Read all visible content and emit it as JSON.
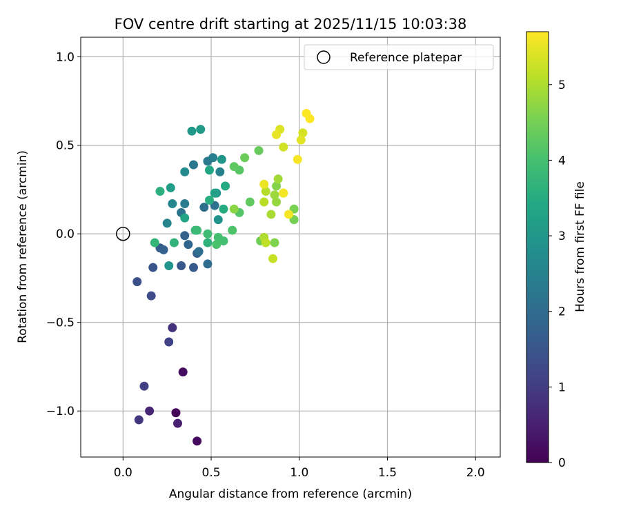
{
  "chart_data": {
    "type": "scatter",
    "title": "FOV centre drift starting at 2025/11/15 10:03:38",
    "xlabel": "Angular distance from reference (arcmin)",
    "ylabel": "Rotation from reference (arcmin)",
    "xlim": [
      -0.24,
      2.14
    ],
    "ylim": [
      -1.26,
      1.11
    ],
    "xticks": [
      0.0,
      0.5,
      1.0,
      1.5,
      2.0
    ],
    "xtick_labels": [
      "0.0",
      "0.5",
      "1.0",
      "1.5",
      "2.0"
    ],
    "yticks": [
      -1.0,
      -0.5,
      0.0,
      0.5,
      1.0
    ],
    "ytick_labels": [
      "−1.0",
      "−0.5",
      "0.0",
      "0.5",
      "1.0"
    ],
    "grid": true,
    "legend": {
      "position": "top-right",
      "label": "Reference platepar"
    },
    "reference_point": {
      "x": 0.0,
      "y": 0.0
    },
    "colorbar": {
      "label": "Hours from first FF file",
      "range": [
        0,
        5.7
      ],
      "ticks": [
        0,
        1,
        2,
        3,
        4,
        5
      ],
      "tick_labels": [
        "0",
        "1",
        "2",
        "3",
        "4",
        "5"
      ],
      "colormap": "viridis"
    },
    "points": [
      {
        "x": 0.3,
        "y": -1.01,
        "t": 0.05
      },
      {
        "x": 0.42,
        "y": -1.17,
        "t": 0.15
      },
      {
        "x": 0.34,
        "y": -0.78,
        "t": 0.2
      },
      {
        "x": 0.31,
        "y": -1.07,
        "t": 0.5
      },
      {
        "x": 0.15,
        "y": -1.0,
        "t": 0.6
      },
      {
        "x": 0.28,
        "y": -0.53,
        "t": 0.8
      },
      {
        "x": 0.09,
        "y": -1.05,
        "t": 0.9
      },
      {
        "x": 0.12,
        "y": -0.86,
        "t": 1.05
      },
      {
        "x": 0.26,
        "y": -0.61,
        "t": 1.1
      },
      {
        "x": 0.16,
        "y": -0.35,
        "t": 1.3
      },
      {
        "x": 0.08,
        "y": -0.27,
        "t": 1.4
      },
      {
        "x": 0.17,
        "y": -0.19,
        "t": 1.5
      },
      {
        "x": 0.33,
        "y": -0.18,
        "t": 1.55
      },
      {
        "x": 0.4,
        "y": -0.19,
        "t": 1.6
      },
      {
        "x": 0.21,
        "y": -0.08,
        "t": 1.65
      },
      {
        "x": 0.42,
        "y": -0.11,
        "t": 1.7
      },
      {
        "x": 0.23,
        "y": -0.09,
        "t": 1.75
      },
      {
        "x": 0.35,
        "y": -0.01,
        "t": 1.8
      },
      {
        "x": 0.37,
        "y": -0.06,
        "t": 1.85
      },
      {
        "x": 0.48,
        "y": -0.17,
        "t": 2.0
      },
      {
        "x": 0.43,
        "y": -0.1,
        "t": 2.05
      },
      {
        "x": 0.46,
        "y": 0.15,
        "t": 2.1
      },
      {
        "x": 0.52,
        "y": 0.16,
        "t": 2.15
      },
      {
        "x": 0.33,
        "y": 0.12,
        "t": 2.2
      },
      {
        "x": 0.4,
        "y": 0.39,
        "t": 2.25
      },
      {
        "x": 0.48,
        "y": 0.41,
        "t": 2.3
      },
      {
        "x": 0.35,
        "y": 0.17,
        "t": 2.4
      },
      {
        "x": 0.51,
        "y": 0.43,
        "t": 2.45
      },
      {
        "x": 0.55,
        "y": 0.35,
        "t": 2.5
      },
      {
        "x": 0.25,
        "y": 0.06,
        "t": 2.55
      },
      {
        "x": 0.28,
        "y": 0.17,
        "t": 2.6
      },
      {
        "x": 0.35,
        "y": 0.35,
        "t": 2.7
      },
      {
        "x": 0.53,
        "y": 0.23,
        "t": 2.8
      },
      {
        "x": 0.54,
        "y": 0.08,
        "t": 2.9
      },
      {
        "x": 0.26,
        "y": -0.18,
        "t": 2.95
      },
      {
        "x": 0.56,
        "y": 0.42,
        "t": 3.0
      },
      {
        "x": 0.39,
        "y": 0.58,
        "t": 3.05
      },
      {
        "x": 0.44,
        "y": 0.59,
        "t": 3.1
      },
      {
        "x": 0.27,
        "y": 0.26,
        "t": 3.15
      },
      {
        "x": 0.52,
        "y": 0.23,
        "t": 3.25
      },
      {
        "x": 0.35,
        "y": 0.09,
        "t": 3.35
      },
      {
        "x": 0.49,
        "y": 0.36,
        "t": 3.4
      },
      {
        "x": 0.58,
        "y": 0.27,
        "t": 3.45
      },
      {
        "x": 0.57,
        "y": 0.14,
        "t": 3.5
      },
      {
        "x": 0.49,
        "y": 0.19,
        "t": 3.55
      },
      {
        "x": 0.21,
        "y": 0.24,
        "t": 3.6
      },
      {
        "x": 0.48,
        "y": -0.05,
        "t": 3.65
      },
      {
        "x": 0.29,
        "y": -0.05,
        "t": 3.7
      },
      {
        "x": 0.18,
        "y": -0.05,
        "t": 3.75
      },
      {
        "x": 0.41,
        "y": 0.02,
        "t": 3.8
      },
      {
        "x": 0.42,
        "y": 0.02,
        "t": 3.85
      },
      {
        "x": 0.48,
        "y": 0.0,
        "t": 3.9
      },
      {
        "x": 0.57,
        "y": -0.04,
        "t": 3.95
      },
      {
        "x": 0.54,
        "y": -0.02,
        "t": 4.0
      },
      {
        "x": 0.53,
        "y": -0.06,
        "t": 4.05
      },
      {
        "x": 0.62,
        "y": 0.02,
        "t": 4.1
      },
      {
        "x": 0.66,
        "y": 0.12,
        "t": 4.15
      },
      {
        "x": 0.66,
        "y": 0.36,
        "t": 4.2
      },
      {
        "x": 0.63,
        "y": 0.38,
        "t": 4.25
      },
      {
        "x": 0.72,
        "y": 0.18,
        "t": 4.3
      },
      {
        "x": 0.77,
        "y": 0.47,
        "t": 4.35
      },
      {
        "x": 0.69,
        "y": 0.43,
        "t": 4.4
      },
      {
        "x": 0.78,
        "y": -0.04,
        "t": 4.45
      },
      {
        "x": 0.97,
        "y": 0.08,
        "t": 4.5
      },
      {
        "x": 0.97,
        "y": 0.14,
        "t": 4.55
      },
      {
        "x": 0.86,
        "y": -0.05,
        "t": 4.6
      },
      {
        "x": 0.87,
        "y": 0.27,
        "t": 4.65
      },
      {
        "x": 0.63,
        "y": 0.14,
        "t": 4.7
      },
      {
        "x": 0.87,
        "y": 0.18,
        "t": 4.8
      },
      {
        "x": 0.86,
        "y": 0.22,
        "t": 4.85
      },
      {
        "x": 0.88,
        "y": 0.31,
        "t": 4.9
      },
      {
        "x": 0.84,
        "y": 0.11,
        "t": 4.95
      },
      {
        "x": 0.8,
        "y": -0.02,
        "t": 5.0
      },
      {
        "x": 0.81,
        "y": 0.24,
        "t": 5.05
      },
      {
        "x": 0.8,
        "y": 0.18,
        "t": 5.1
      },
      {
        "x": 0.81,
        "y": -0.05,
        "t": 5.15
      },
      {
        "x": 0.85,
        "y": -0.14,
        "t": 5.2
      },
      {
        "x": 0.91,
        "y": 0.23,
        "t": 5.25
      },
      {
        "x": 0.91,
        "y": 0.49,
        "t": 5.3
      },
      {
        "x": 1.02,
        "y": 0.57,
        "t": 5.35
      },
      {
        "x": 0.89,
        "y": 0.59,
        "t": 5.4
      },
      {
        "x": 1.01,
        "y": 0.53,
        "t": 5.45
      },
      {
        "x": 0.87,
        "y": 0.56,
        "t": 5.5
      },
      {
        "x": 0.8,
        "y": 0.28,
        "t": 5.55
      },
      {
        "x": 0.91,
        "y": 0.23,
        "t": 5.6
      },
      {
        "x": 0.94,
        "y": 0.11,
        "t": 5.62
      },
      {
        "x": 0.99,
        "y": 0.42,
        "t": 5.65
      },
      {
        "x": 1.04,
        "y": 0.68,
        "t": 5.68
      },
      {
        "x": 1.06,
        "y": 0.65,
        "t": 5.7
      }
    ]
  }
}
